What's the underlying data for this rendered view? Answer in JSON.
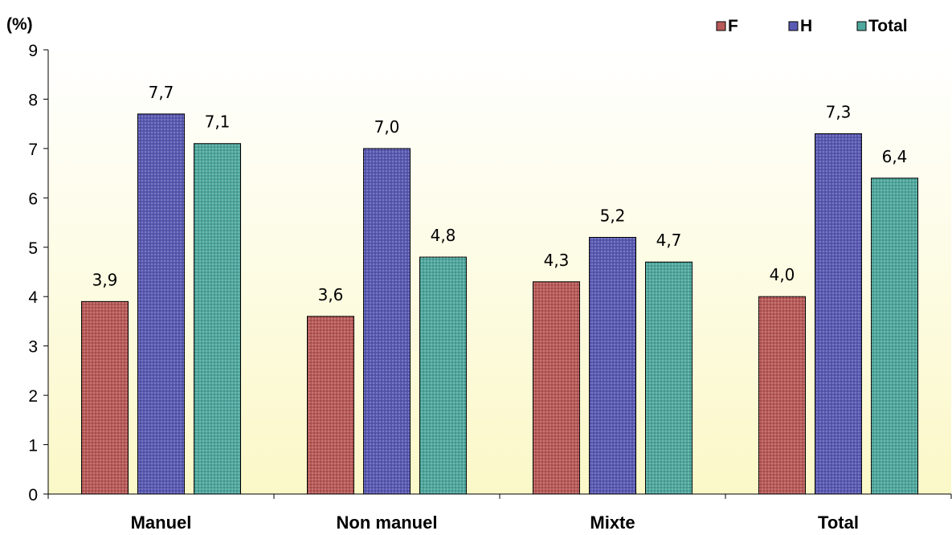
{
  "chart_data": {
    "type": "bar",
    "unit_label": "(%)",
    "categories": [
      "Manuel",
      "Non manuel",
      "Mixte",
      "Total"
    ],
    "series": [
      {
        "name": "F",
        "values": [
          3.9,
          3.6,
          4.3,
          4.0
        ],
        "labels": [
          "3,9",
          "3,6",
          "4,3",
          "4,0"
        ],
        "color": "#b85a58"
      },
      {
        "name": "H",
        "values": [
          7.7,
          7.0,
          5.2,
          7.3
        ],
        "labels": [
          "7,7",
          "7,0",
          "5,2",
          "7,3"
        ],
        "color": "#5a5ab4"
      },
      {
        "name": "Total",
        "values": [
          7.1,
          4.8,
          4.7,
          6.4
        ],
        "labels": [
          "7,1",
          "4,8",
          "4,7",
          "6,4"
        ],
        "color": "#4fa89e"
      }
    ],
    "yticks": [
      "0",
      "1",
      "2",
      "3",
      "4",
      "5",
      "6",
      "7",
      "8",
      "9"
    ],
    "ylim": [
      0,
      9
    ],
    "grid": false,
    "legend_position": "top-right",
    "background_gradient": [
      "#ffffff",
      "#fbf8c8"
    ]
  }
}
